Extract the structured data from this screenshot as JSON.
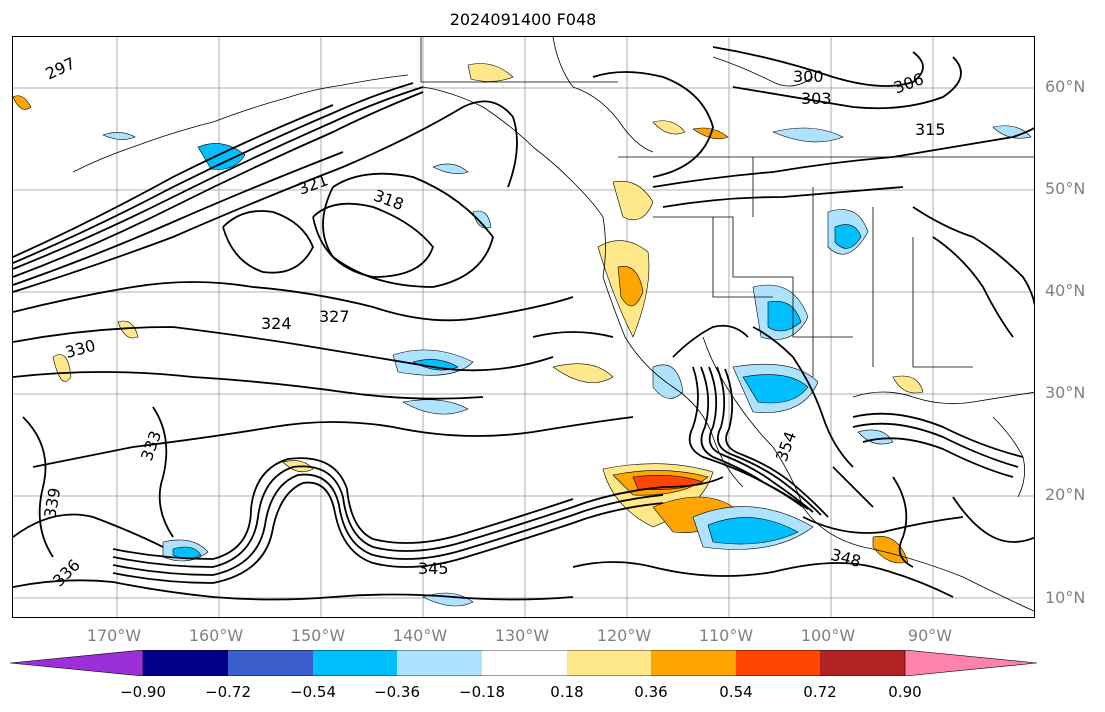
{
  "title": "2024091400 F048",
  "lat_labels": [
    "60°N",
    "50°N",
    "40°N",
    "30°N",
    "20°N",
    "10°N"
  ],
  "lon_labels": [
    "170°W",
    "160°W",
    "150°W",
    "140°W",
    "130°W",
    "120°W",
    "110°W",
    "100°W",
    "90°W"
  ],
  "colorbar": {
    "ticks": [
      "−0.90",
      "−0.72",
      "−0.54",
      "−0.36",
      "−0.18",
      "0.18",
      "0.36",
      "0.54",
      "0.72",
      "0.90"
    ],
    "colors": [
      "#9b30d8",
      "#00008b",
      "#3a5fcd",
      "#00bfff",
      "#aee3ff",
      "#ffffff",
      "#ffe88a",
      "#ffa500",
      "#ff4500",
      "#b22222",
      "#ff82ab"
    ]
  },
  "contour_labels": [
    "297",
    "300",
    "303",
    "306",
    "315",
    "318",
    "321",
    "324",
    "327",
    "330",
    "333",
    "336",
    "339",
    "345",
    "348",
    "354"
  ]
}
